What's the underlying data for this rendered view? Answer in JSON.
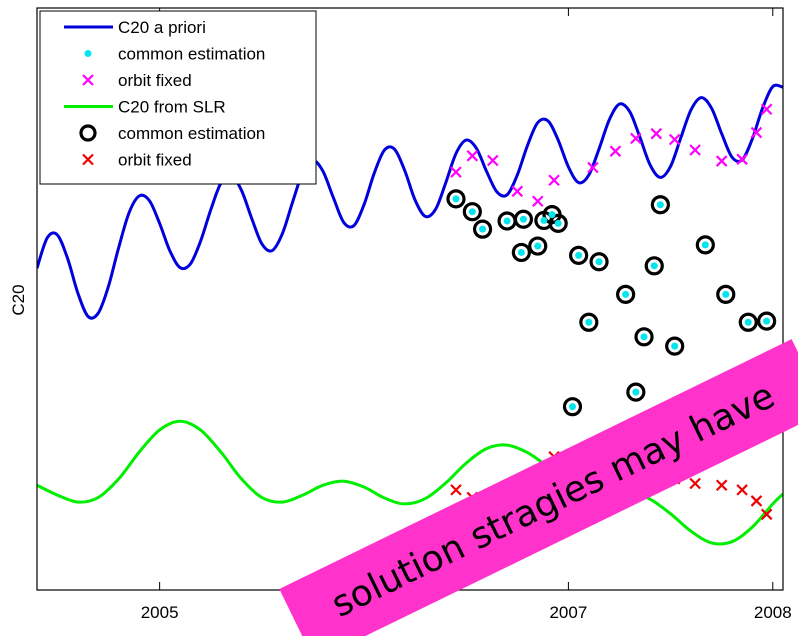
{
  "chart_data": {
    "type": "line",
    "title": "",
    "xlabel": "",
    "ylabel": "C20",
    "xlim": [
      2004.4,
      2008.05
    ],
    "ylim": [
      0,
      1
    ],
    "x_ticks": [
      {
        "value": 2005,
        "label": "2005"
      },
      {
        "value": 2007,
        "label": "2007"
      },
      {
        "value": 2008,
        "label": "2008"
      }
    ],
    "grid": false,
    "legend": {
      "placement": "top-left",
      "entries": [
        {
          "label": "C20 a priori",
          "marker": "line",
          "color": "#0000dd"
        },
        {
          "label": "common estimation",
          "marker": "dot",
          "color": "#00e5ee"
        },
        {
          "label": "orbit fixed",
          "marker": "x",
          "color": "#ff00ff"
        },
        {
          "label": "C20 from SLR",
          "marker": "line",
          "color": "#00ee00"
        },
        {
          "label": "common estimation",
          "marker": "circle",
          "color": "#000000"
        },
        {
          "label": "orbit fixed",
          "marker": "x",
          "color": "#ee0000"
        }
      ]
    },
    "series": [
      {
        "name": "C20 a priori",
        "style": "line",
        "color": "#0000dd",
        "x": [
          2004.4,
          2004.45,
          2004.5,
          2004.55,
          2004.6,
          2004.65,
          2004.7,
          2004.75,
          2004.8,
          2004.85,
          2004.9,
          2004.95,
          2005.0,
          2005.05,
          2005.1,
          2005.15,
          2005.2,
          2005.25,
          2005.3,
          2005.35,
          2005.4,
          2005.45,
          2005.5,
          2005.55,
          2005.6,
          2005.65,
          2005.7,
          2005.75,
          2005.8,
          2005.85,
          2005.9,
          2005.95,
          2006.0,
          2006.05,
          2006.1,
          2006.15,
          2006.2,
          2006.25,
          2006.3,
          2006.35,
          2006.4,
          2006.45,
          2006.5,
          2006.55,
          2006.6,
          2006.65,
          2006.7,
          2006.75,
          2006.8,
          2006.85,
          2006.9,
          2006.95,
          2007.0,
          2007.05,
          2007.1,
          2007.15,
          2007.2,
          2007.25,
          2007.3,
          2007.35,
          2007.4,
          2007.45,
          2007.5,
          2007.55,
          2007.6,
          2007.65,
          2007.7,
          2007.75,
          2007.8,
          2007.85,
          2007.9,
          2007.95,
          2008.0,
          2008.05
        ],
        "y": [
          0.553,
          0.605,
          0.61,
          0.569,
          0.51,
          0.47,
          0.476,
          0.522,
          0.589,
          0.648,
          0.677,
          0.669,
          0.63,
          0.583,
          0.554,
          0.56,
          0.599,
          0.653,
          0.699,
          0.712,
          0.687,
          0.639,
          0.595,
          0.583,
          0.612,
          0.666,
          0.717,
          0.738,
          0.719,
          0.674,
          0.632,
          0.626,
          0.662,
          0.716,
          0.756,
          0.757,
          0.72,
          0.67,
          0.642,
          0.654,
          0.7,
          0.75,
          0.773,
          0.759,
          0.719,
          0.684,
          0.679,
          0.713,
          0.764,
          0.803,
          0.806,
          0.773,
          0.727,
          0.7,
          0.713,
          0.758,
          0.808,
          0.835,
          0.822,
          0.778,
          0.73,
          0.709,
          0.728,
          0.777,
          0.825,
          0.846,
          0.828,
          0.784,
          0.744,
          0.739,
          0.775,
          0.828,
          0.865,
          0.864
        ]
      },
      {
        "name": "C20 a priori — common estimation",
        "style": "dot",
        "color": "#00e5ee",
        "x": [
          2006.45,
          2006.53,
          2006.63,
          2006.75,
          2006.85,
          2006.93,
          2007.12,
          2007.23,
          2007.33,
          2007.43,
          2007.52,
          2007.62,
          2007.75,
          2007.85,
          2007.92,
          2007.97
        ],
        "y": [
          0.718,
          0.746,
          0.738,
          0.685,
          0.668,
          0.704,
          0.726,
          0.754,
          0.776,
          0.784,
          0.774,
          0.756,
          0.737,
          0.74,
          0.786,
          0.826
        ]
      },
      {
        "name": "C20 a priori — orbit fixed",
        "style": "x",
        "color": "#ff00ff",
        "x": [
          2006.45,
          2006.53,
          2006.63,
          2006.75,
          2006.85,
          2006.93,
          2007.12,
          2007.23,
          2007.33,
          2007.43,
          2007.52,
          2007.62,
          2007.75,
          2007.85,
          2007.92,
          2007.97
        ],
        "y": [
          0.718,
          0.746,
          0.738,
          0.685,
          0.668,
          0.704,
          0.726,
          0.754,
          0.776,
          0.784,
          0.774,
          0.756,
          0.737,
          0.74,
          0.786,
          0.826
        ]
      },
      {
        "name": "C20 from SLR",
        "style": "line",
        "color": "#00ee00",
        "x": [
          2004.4,
          2004.5,
          2004.6,
          2004.7,
          2004.8,
          2004.9,
          2005.0,
          2005.1,
          2005.2,
          2005.3,
          2005.4,
          2005.5,
          2005.6,
          2005.7,
          2005.8,
          2005.9,
          2006.0,
          2006.1,
          2006.2,
          2006.3,
          2006.4,
          2006.5,
          2006.6,
          2006.7,
          2006.8,
          2006.9,
          2007.0,
          2007.1,
          2007.2,
          2007.3,
          2007.4,
          2007.5,
          2007.6,
          2007.7,
          2007.8,
          2007.9,
          2008.0,
          2008.05
        ],
        "y": [
          0.18,
          0.163,
          0.151,
          0.159,
          0.191,
          0.237,
          0.275,
          0.29,
          0.275,
          0.237,
          0.191,
          0.159,
          0.151,
          0.163,
          0.18,
          0.187,
          0.177,
          0.158,
          0.148,
          0.157,
          0.184,
          0.218,
          0.243,
          0.249,
          0.236,
          0.212,
          0.19,
          0.178,
          0.174,
          0.17,
          0.156,
          0.131,
          0.101,
          0.081,
          0.083,
          0.108,
          0.148,
          0.165
        ]
      },
      {
        "name": "C20 from SLR — common estimation",
        "style": "circle",
        "color": "#000000",
        "x": [
          2006.45,
          2006.53,
          2006.63,
          2006.75,
          2006.85,
          2006.93,
          2007.12,
          2007.23,
          2007.33,
          2007.43,
          2007.52,
          2007.62,
          2007.75,
          2007.85,
          2007.92,
          2007.97
        ],
        "y": [
          0.172,
          0.159,
          0.149,
          0.165,
          0.196,
          0.229,
          0.247,
          0.245,
          0.232,
          0.218,
          0.191,
          0.183,
          0.18,
          0.172,
          0.153,
          0.13
        ]
      },
      {
        "name": "C20 from SLR — orbit fixed",
        "style": "x",
        "color": "#ee0000",
        "x": [
          2006.45,
          2006.53,
          2006.63,
          2006.75,
          2006.85,
          2006.93,
          2007.12,
          2007.23,
          2007.33,
          2007.43,
          2007.52,
          2007.62,
          2007.75,
          2007.85,
          2007.92,
          2007.97
        ],
        "y": [
          0.172,
          0.159,
          0.149,
          0.165,
          0.196,
          0.229,
          0.247,
          0.245,
          0.232,
          0.218,
          0.191,
          0.183,
          0.18,
          0.172,
          0.153,
          0.13
        ]
      }
    ],
    "scatter_circles": {
      "style": "circle",
      "x": [
        2006.45,
        2006.53,
        2006.7,
        2006.58,
        2006.78,
        2006.88,
        2006.92,
        2006.95,
        2006.77,
        2006.85,
        2007.05,
        2007.15,
        2007.1,
        2007.28,
        2007.37,
        2007.42,
        2007.45,
        2007.67,
        2007.77,
        2007.88,
        2007.92,
        2007.97,
        2007.52,
        2007.33,
        2007.02
      ],
      "y": [
        0.672,
        0.65,
        0.634,
        0.62,
        0.637,
        0.635,
        0.645,
        0.63,
        0.58,
        0.591,
        0.575,
        0.564,
        0.46,
        0.508,
        0.435,
        0.557,
        0.662,
        0.593,
        0.508,
        0.46,
        0.382,
        0.462,
        0.419,
        0.34,
        0.315
      ]
    },
    "scatter_dots": {
      "style": "dot",
      "x": [
        2006.45,
        2006.53,
        2006.7,
        2006.58,
        2006.78,
        2006.88,
        2006.92,
        2006.95,
        2006.77,
        2006.85,
        2007.05,
        2007.15,
        2007.1,
        2007.28,
        2007.37,
        2007.42,
        2007.45,
        2007.67,
        2007.77,
        2007.88,
        2007.92,
        2007.97,
        2007.52,
        2007.33,
        2007.02
      ],
      "y": [
        0.672,
        0.65,
        0.634,
        0.62,
        0.637,
        0.635,
        0.645,
        0.63,
        0.58,
        0.591,
        0.575,
        0.564,
        0.46,
        0.508,
        0.435,
        0.557,
        0.662,
        0.593,
        0.508,
        0.46,
        0.382,
        0.462,
        0.419,
        0.34,
        0.315
      ]
    }
  },
  "banner": {
    "text": "solution stragies may have",
    "color": "#ff33cc"
  }
}
